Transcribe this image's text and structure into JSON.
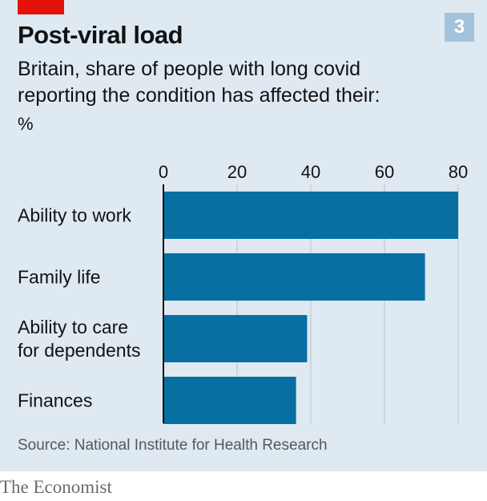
{
  "header": {
    "badge": "3",
    "title": "Post-viral load",
    "subtitle_line1": "Britain, share of people with long covid",
    "subtitle_line2": "reporting the condition has affected their:",
    "unit": "%"
  },
  "chart_data": {
    "type": "bar",
    "orientation": "horizontal",
    "categories": [
      [
        "Ability to work"
      ],
      [
        "Family life"
      ],
      [
        "Ability to care",
        "for dependents"
      ],
      [
        "Finances"
      ]
    ],
    "values": [
      80,
      71,
      39,
      36
    ],
    "xlim": [
      0,
      80
    ],
    "ticks": [
      0,
      20,
      40,
      60,
      80
    ],
    "grid": true,
    "bar_color": "#076fa2"
  },
  "source": "Source: National Institute for Health Research",
  "footer": "The Economist",
  "colors": {
    "brand_red": "#e3120b",
    "panel_background": "#dfe9f1",
    "badge": "#a4c3db",
    "gridline": "#b3c5d3",
    "axis": "#121212"
  }
}
